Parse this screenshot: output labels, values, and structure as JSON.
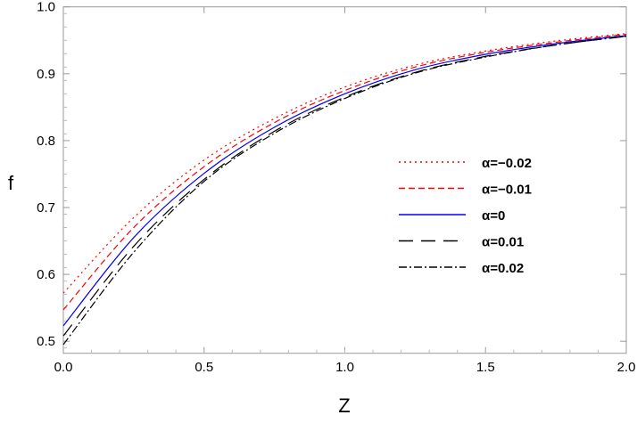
{
  "chart_data": {
    "type": "line",
    "title": "",
    "xlabel": "Z",
    "ylabel": "f",
    "xlim": [
      0,
      2
    ],
    "ylim": [
      0.482,
      1.0
    ],
    "xticks": [
      "0.0",
      "0.5",
      "1.0",
      "1.5",
      "2.0"
    ],
    "xtick_values": [
      0,
      0.5,
      1.0,
      1.5,
      2.0
    ],
    "yticks": [
      "0.5",
      "0.6",
      "0.7",
      "0.8",
      "0.9",
      "1.0"
    ],
    "ytick_values": [
      0.5,
      0.6,
      0.7,
      0.8,
      0.9,
      1.0
    ],
    "grid": false,
    "legend_position": "center-right",
    "x": [
      0,
      0.25,
      0.5,
      0.75,
      1.0,
      1.25,
      1.5,
      1.75,
      2.0
    ],
    "series": [
      {
        "name": "α=−0.02",
        "color": "#ff0000",
        "dash": "dotted",
        "values": [
          0.572,
          0.685,
          0.771,
          0.833,
          0.88,
          0.913,
          0.934,
          0.949,
          0.96
        ]
      },
      {
        "name": "α=−0.01",
        "color": "#ff0000",
        "dash": "dashed",
        "values": [
          0.547,
          0.67,
          0.761,
          0.827,
          0.875,
          0.91,
          0.932,
          0.947,
          0.959
        ]
      },
      {
        "name": "α=0",
        "color": "#0000ff",
        "dash": "solid",
        "values": [
          0.523,
          0.655,
          0.751,
          0.82,
          0.87,
          0.906,
          0.929,
          0.945,
          0.957
        ]
      },
      {
        "name": "α=0.01",
        "color": "#000000",
        "dash": "longdash",
        "values": [
          0.508,
          0.642,
          0.742,
          0.814,
          0.865,
          0.902,
          0.926,
          0.943,
          0.956
        ]
      },
      {
        "name": "α=0.02",
        "color": "#000000",
        "dash": "dotdash",
        "values": [
          0.495,
          0.633,
          0.739,
          0.811,
          0.863,
          0.901,
          0.925,
          0.943,
          0.956
        ]
      }
    ]
  }
}
